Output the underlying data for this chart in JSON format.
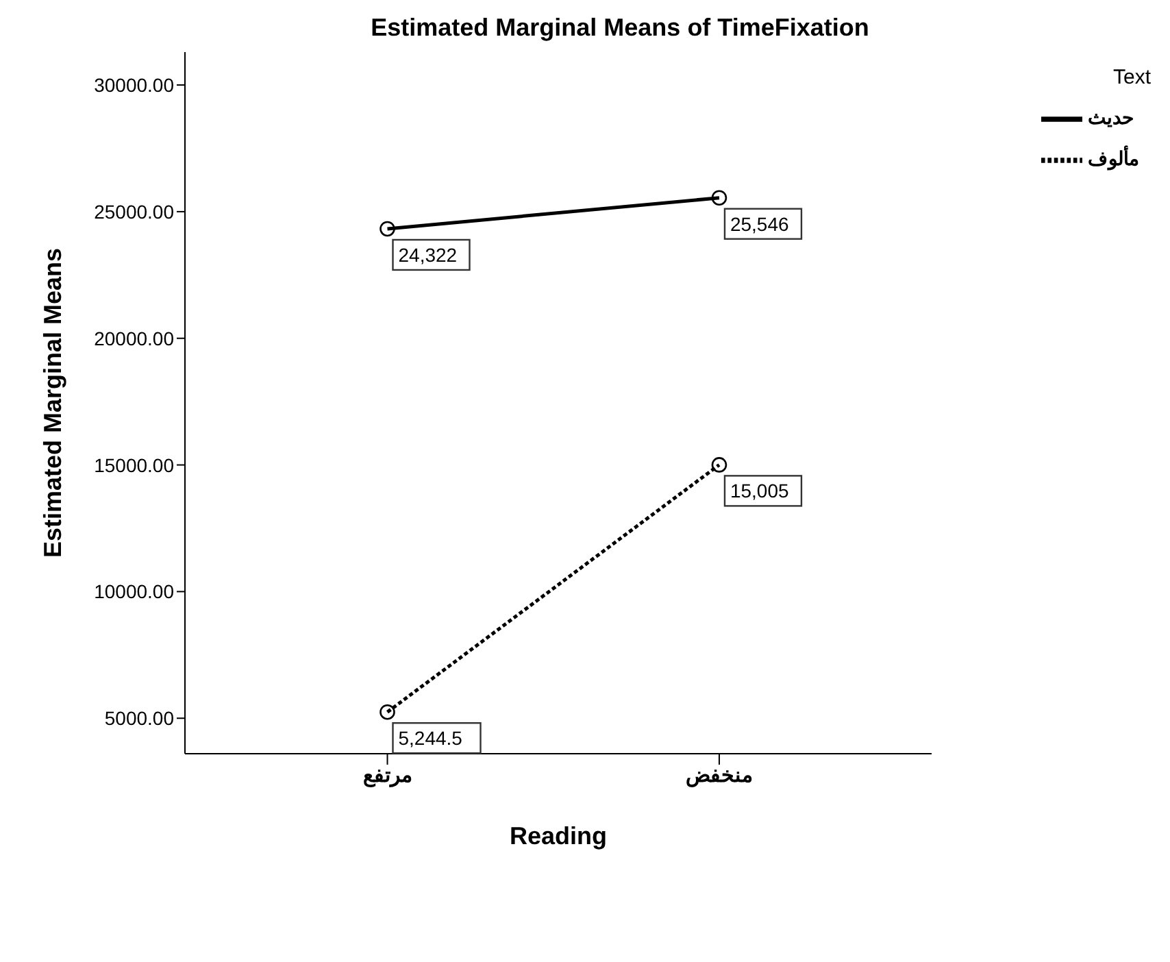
{
  "chart_data": {
    "type": "line",
    "title": "Estimated Marginal Means of TimeFixation",
    "xlabel": "Reading",
    "ylabel": "Estimated Marginal Means",
    "legend_title": "Text",
    "categories": [
      "مرتفع",
      "منخفض"
    ],
    "series": [
      {
        "name": "حديث",
        "color": "#000000",
        "line_style": "solid",
        "values": [
          24322,
          25546
        ],
        "value_labels": [
          "24,322",
          "25,546"
        ]
      },
      {
        "name": "مألوف",
        "color": "#000000",
        "line_style": "dotted",
        "values": [
          5244.5,
          15005
        ],
        "value_labels": [
          "5,244.5",
          "15,005"
        ]
      }
    ],
    "ylim": [
      3600,
      31300
    ],
    "yticks": [
      {
        "value": 5000,
        "label": "5000.00"
      },
      {
        "value": 10000,
        "label": "10000.00"
      },
      {
        "value": 15000,
        "label": "15000.00"
      },
      {
        "value": 20000,
        "label": "20000.00"
      },
      {
        "value": 25000,
        "label": "25000.00"
      },
      {
        "value": 30000,
        "label": "30000.00"
      }
    ],
    "grid": false,
    "legend": "top right",
    "marker": "circle"
  }
}
